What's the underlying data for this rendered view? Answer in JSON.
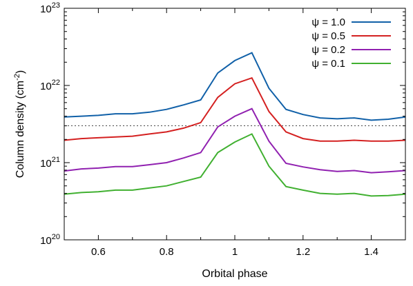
{
  "chart_data": {
    "type": "line",
    "xlabel": "Orbital phase",
    "ylabel_main": "Column density (cm",
    "ylabel_exp": "-2",
    "ylabel_close": ")",
    "xlim": [
      0.5,
      1.5
    ],
    "ylim": [
      1e+20,
      1e+23
    ],
    "yscale": "log",
    "xticks": [
      "0.6",
      "0.8",
      "1",
      "1.2",
      "1.4"
    ],
    "yticks": [
      {
        "value": 1e+20,
        "base": "10",
        "exp": "20"
      },
      {
        "value": 1e+21,
        "base": "10",
        "exp": "21"
      },
      {
        "value": 1e+22,
        "base": "10",
        "exp": "22"
      },
      {
        "value": 1e+23,
        "base": "10",
        "exp": "23"
      }
    ],
    "legend_position": "top-right",
    "reference_line": 3e+21,
    "x": [
      0.5,
      0.55,
      0.6,
      0.65,
      0.7,
      0.75,
      0.8,
      0.85,
      0.9,
      0.95,
      1.0,
      1.05,
      1.1,
      1.15,
      1.2,
      1.25,
      1.3,
      1.35,
      1.4,
      1.45,
      1.5
    ],
    "series": [
      {
        "name": "ψ = 1.0",
        "color": "#1060a8",
        "values": [
          3.9e+21,
          4e+21,
          4.1e+21,
          4.3e+21,
          4.3e+21,
          4.5e+21,
          4.9e+21,
          5.6e+21,
          6.5e+21,
          1.45e+22,
          2.1e+22,
          2.65e+22,
          9.2e+21,
          4.9e+21,
          4.2e+21,
          3.8e+21,
          3.7e+21,
          3.8e+21,
          3.55e+21,
          3.65e+21,
          3.9e+21
        ]
      },
      {
        "name": "ψ = 0.5",
        "color": "#d42020",
        "values": [
          1.95e+21,
          2.05e+21,
          2.1e+21,
          2.15e+21,
          2.2e+21,
          2.35e+21,
          2.5e+21,
          2.8e+21,
          3.3e+21,
          7e+21,
          1.05e+22,
          1.25e+22,
          4.6e+21,
          2.5e+21,
          2.05e+21,
          1.9e+21,
          1.9e+21,
          1.95e+21,
          1.9e+21,
          1.9e+21,
          1.95e+21
        ]
      },
      {
        "name": "ψ = 0.2",
        "color": "#9020b0",
        "values": [
          7.8e+20,
          8.3e+20,
          8.5e+20,
          8.9e+20,
          8.9e+20,
          9.4e+20,
          1e+21,
          1.15e+21,
          1.35e+21,
          2.9e+21,
          4e+21,
          5e+21,
          1.9e+21,
          9.8e+20,
          8.8e+20,
          8.1e+20,
          7.7e+20,
          7.9e+20,
          7.4e+20,
          7.6e+20,
          7.9e+20
        ]
      },
      {
        "name": "ψ = 0.1",
        "color": "#40b030",
        "values": [
          3.9e+20,
          4.1e+20,
          4.2e+20,
          4.4e+20,
          4.4e+20,
          4.7e+20,
          5e+20,
          5.7e+20,
          6.5e+20,
          1.35e+21,
          1.85e+21,
          2.35e+21,
          9e+20,
          4.9e+20,
          4.4e+20,
          4e+20,
          3.9e+20,
          4e+20,
          3.7e+20,
          3.75e+20,
          3.9e+20
        ]
      }
    ]
  }
}
